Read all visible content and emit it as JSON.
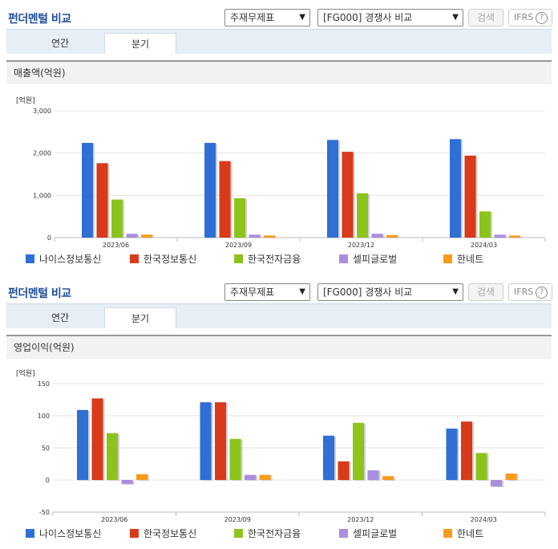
{
  "sections": [
    {
      "header": {
        "title": "펀더멘털 비교",
        "select1": "주재무제표",
        "select2": "[FG000] 경쟁사 비교",
        "search_label": "검색",
        "ifrs_label": "IFRS",
        "help_glyph": "?"
      },
      "tabs": [
        {
          "label": "연간"
        },
        {
          "label": "분기"
        }
      ],
      "active_tab": 1,
      "panel_title": "매출액(억원)",
      "chart_data": {
        "type": "bar",
        "unit_label": "[억원]",
        "categories": [
          "2023/06",
          "2023/09",
          "2023/12",
          "2024/03"
        ],
        "ylim": [
          0,
          3000
        ],
        "yticks": [
          0,
          1000,
          2000,
          3000
        ],
        "ytick_labels": [
          "0",
          "1,000",
          "2,000",
          "3,000"
        ],
        "grid": true,
        "legend_placement": "bottom",
        "series": [
          {
            "name": "나이스정보통신",
            "color": "#2f6fd6",
            "values": [
              2240,
              2240,
              2310,
              2330
            ]
          },
          {
            "name": "한국정보통신",
            "color": "#d93a1a",
            "values": [
              1760,
              1810,
              2030,
              1940
            ]
          },
          {
            "name": "한국전자금융",
            "color": "#8cc41c",
            "values": [
              900,
              930,
              1050,
              620
            ]
          },
          {
            "name": "셀피글로벌",
            "color": "#a98ee0",
            "values": [
              90,
              70,
              90,
              70
            ]
          },
          {
            "name": "한네트",
            "color": "#f89c1c",
            "values": [
              70,
              50,
              60,
              50
            ]
          }
        ]
      }
    },
    {
      "header": {
        "title": "펀더멘털 비교",
        "select1": "주재무제표",
        "select2": "[FG000] 경쟁사 비교",
        "search_label": "검색",
        "ifrs_label": "IFRS",
        "help_glyph": "?"
      },
      "tabs": [
        {
          "label": "연간"
        },
        {
          "label": "분기"
        }
      ],
      "active_tab": 1,
      "panel_title": "영업이익(억원)",
      "chart_data": {
        "type": "bar",
        "unit_label": "[억원]",
        "categories": [
          "2023/06",
          "2023/09",
          "2023/12",
          "2024/03"
        ],
        "ylim": [
          -50,
          150
        ],
        "yticks": [
          -50,
          0,
          50,
          100,
          150
        ],
        "ytick_labels": [
          "-50",
          "0",
          "50",
          "100",
          "150"
        ],
        "grid": true,
        "legend_placement": "bottom",
        "series": [
          {
            "name": "나이스정보통신",
            "color": "#2f6fd6",
            "values": [
              109,
              121,
              69,
              80
            ]
          },
          {
            "name": "한국정보통신",
            "color": "#d93a1a",
            "values": [
              127,
              121,
              29,
              91
            ]
          },
          {
            "name": "한국전자금융",
            "color": "#8cc41c",
            "values": [
              73,
              64,
              89,
              42
            ]
          },
          {
            "name": "셀피글로벌",
            "color": "#a98ee0",
            "values": [
              -6,
              8,
              15,
              -10
            ]
          },
          {
            "name": "한네트",
            "color": "#f89c1c",
            "values": [
              9,
              8,
              6,
              10
            ]
          }
        ]
      }
    }
  ]
}
